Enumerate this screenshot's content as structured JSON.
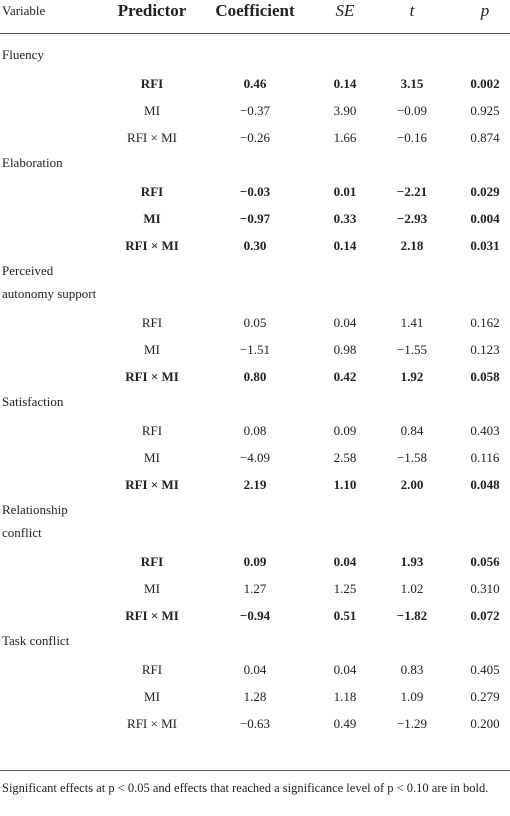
{
  "table": {
    "header": [
      "Variable",
      "Predictor",
      "Coefficient",
      "SE",
      "t",
      "p"
    ],
    "groups": [
      {
        "variable": "Fluency",
        "rows": [
          {
            "predictor": "RFI",
            "bold": true,
            "values": [
              "0.46",
              "0.14",
              "3.15",
              "0.002"
            ]
          },
          {
            "predictor": "MI",
            "bold": false,
            "values": [
              "−0.37",
              "3.90",
              "−0.09",
              "0.925"
            ]
          },
          {
            "predictor": "RFI × MI",
            "bold": false,
            "values": [
              "−0.26",
              "1.66",
              "−0.16",
              "0.874"
            ]
          }
        ]
      },
      {
        "variable": "Elaboration",
        "rows": [
          {
            "predictor": "RFI",
            "bold": true,
            "values": [
              "−0.03",
              "0.01",
              "−2.21",
              "0.029"
            ]
          },
          {
            "predictor": "MI",
            "bold": true,
            "values": [
              "−0.97",
              "0.33",
              "−2.93",
              "0.004"
            ]
          },
          {
            "predictor": "RFI × MI",
            "bold": true,
            "values": [
              "0.30",
              "0.14",
              "2.18",
              "0.031"
            ]
          }
        ]
      },
      {
        "variable": "Perceived autonomy support",
        "rows": [
          {
            "predictor": "RFI",
            "bold": false,
            "values": [
              "0.05",
              "0.04",
              "1.41",
              "0.162"
            ]
          },
          {
            "predictor": "MI",
            "bold": false,
            "values": [
              "−1.51",
              "0.98",
              "−1.55",
              "0.123"
            ]
          },
          {
            "predictor": "RFI × MI",
            "bold": true,
            "values": [
              "0.80",
              "0.42",
              "1.92",
              "0.058"
            ]
          }
        ]
      },
      {
        "variable": "Satisfaction",
        "rows": [
          {
            "predictor": "RFI",
            "bold": false,
            "values": [
              "0.08",
              "0.09",
              "0.84",
              "0.403"
            ]
          },
          {
            "predictor": "MI",
            "bold": false,
            "values": [
              "−4.09",
              "2.58",
              "−1.58",
              "0.116"
            ]
          },
          {
            "predictor": "RFI × MI",
            "bold": true,
            "values": [
              "2.19",
              "1.10",
              "2.00",
              "0.048"
            ]
          }
        ]
      },
      {
        "variable": "Relationship conflict",
        "rows": [
          {
            "predictor": "RFI",
            "bold": true,
            "values": [
              "0.09",
              "0.04",
              "1.93",
              "0.056"
            ]
          },
          {
            "predictor": "MI",
            "bold": false,
            "values": [
              "1.27",
              "1.25",
              "1.02",
              "0.310"
            ]
          },
          {
            "predictor": "RFI × MI",
            "bold": true,
            "values": [
              "−0.94",
              "0.51",
              "−1.82",
              "0.072"
            ]
          }
        ]
      },
      {
        "variable": "Task conflict",
        "rows": [
          {
            "predictor": "RFI",
            "bold": false,
            "values": [
              "0.04",
              "0.04",
              "0.83",
              "0.405"
            ]
          },
          {
            "predictor": "MI",
            "bold": false,
            "values": [
              "1.28",
              "1.18",
              "1.09",
              "0.279"
            ]
          },
          {
            "predictor": "RFI × MI",
            "bold": false,
            "values": [
              "−0.63",
              "0.49",
              "−1.29",
              "0.200"
            ]
          }
        ]
      }
    ],
    "footnote": "Significant effects at p < 0.05 and effects that reached a significance level of p < 0.10 are in bold."
  }
}
